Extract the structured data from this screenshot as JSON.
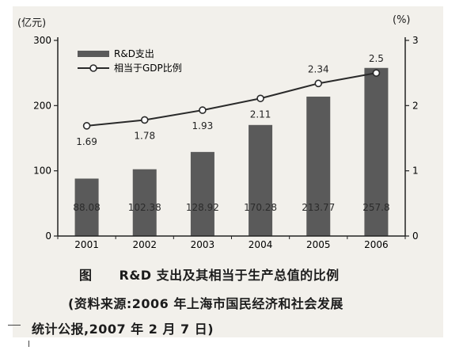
{
  "chart_data": {
    "type": "bar+line",
    "categories": [
      "2001",
      "2002",
      "2003",
      "2004",
      "2005",
      "2006"
    ],
    "series": [
      {
        "name": "R&D支出",
        "type": "bar",
        "axis": "left",
        "values": [
          88.08,
          102.38,
          128.92,
          170.28,
          213.77,
          257.8
        ],
        "labels": [
          "88.08",
          "102.38",
          "128.92",
          "170.28",
          "213.77",
          "257.8"
        ]
      },
      {
        "name": "相当于GDP比例",
        "type": "line",
        "axis": "right",
        "values": [
          1.69,
          1.78,
          1.93,
          2.11,
          2.34,
          2.5
        ],
        "labels": [
          "1.69",
          "1.78",
          "1.93",
          "2.11",
          "2.34",
          "2.5"
        ]
      }
    ],
    "y_left": {
      "unit": "(亿元)",
      "ylim": [
        0,
        300
      ],
      "ticks": [
        0,
        100,
        200,
        300
      ]
    },
    "y_right": {
      "unit": "(%)",
      "ylim": [
        0,
        3
      ],
      "ticks": [
        0,
        1,
        2,
        3
      ]
    },
    "legend_position": "top-left",
    "grid": false,
    "colors": {
      "bar": "#5a5a5a",
      "line": "#2a2a2a",
      "marker_fill": "#ffffff"
    }
  },
  "caption": {
    "label": "图",
    "title": "R&D 支出及其相当于生产总值的比例",
    "source_line1": "(资料来源:2006 年上海市国民经济和社会发展",
    "source_line2": "统计公报,2007 年 2 月 7 日)"
  }
}
